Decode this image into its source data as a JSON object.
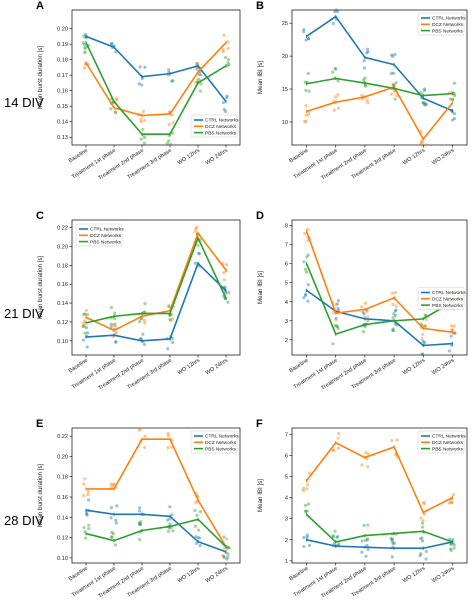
{
  "colors": {
    "CTRL": "#1f77b4",
    "DCZ": "#ff7f0e",
    "PBS": "#2ca02c"
  },
  "row_labels": [
    "14 DIV",
    "21 DIV",
    "28 DIV"
  ],
  "categories": [
    "Baseline",
    "Treatment 1st phase",
    "Treatment 2nd phase",
    "Treatment 3rd phase",
    "WO 12hrs",
    "WO 24hrs"
  ],
  "chart_data": [
    {
      "panel": "A",
      "type": "line",
      "ylabel": "Mean burst duration [s]",
      "ylim": [
        0.125,
        0.212
      ],
      "yticks": [
        0.13,
        0.14,
        0.15,
        0.16,
        0.17,
        0.18,
        0.19,
        0.2
      ],
      "legend": "bottom-right",
      "series": [
        {
          "name": "CTRL Networks",
          "values": [
            0.195,
            0.188,
            0.169,
            0.171,
            0.176,
            0.153
          ]
        },
        {
          "name": "DCZ Networks",
          "values": [
            0.178,
            0.149,
            0.144,
            0.145,
            0.172,
            0.191
          ]
        },
        {
          "name": "PBS Networks",
          "values": [
            0.191,
            0.153,
            0.132,
            0.132,
            0.165,
            0.176
          ]
        }
      ]
    },
    {
      "panel": "B",
      "type": "line",
      "ylabel": "Mean IBI [s]",
      "ylim": [
        6.5,
        27
      ],
      "yticks": [
        10,
        15,
        20,
        25
      ],
      "legend": "top-right",
      "series": [
        {
          "name": "CTRL Networks",
          "values": [
            23.0,
            26.0,
            19.8,
            18.7,
            13.6,
            11.7
          ]
        },
        {
          "name": "DCZ Networks",
          "values": [
            11.6,
            13.0,
            13.8,
            15.3,
            7.4,
            12.9
          ]
        },
        {
          "name": "PBS Networks",
          "values": [
            15.8,
            16.6,
            15.9,
            15.1,
            14.0,
            14.3
          ]
        }
      ]
    },
    {
      "panel": "C",
      "type": "line",
      "ylabel": "Mean burst duration [s]",
      "ylim": [
        0.085,
        0.228
      ],
      "yticks": [
        0.1,
        0.12,
        0.14,
        0.16,
        0.18,
        0.2,
        0.22
      ],
      "legend": "top-left",
      "series": [
        {
          "name": "CTRL Networks",
          "values": [
            0.104,
            0.106,
            0.1,
            0.102,
            0.182,
            0.153
          ]
        },
        {
          "name": "DCZ Networks",
          "values": [
            0.125,
            0.111,
            0.126,
            0.132,
            0.214,
            0.175
          ]
        },
        {
          "name": "PBS Networks",
          "values": [
            0.119,
            0.126,
            0.129,
            0.129,
            0.209,
            0.145
          ]
        }
      ]
    },
    {
      "panel": "D",
      "type": "line",
      "ylabel": "Mean IBI [s]",
      "ylim": [
        1.2,
        8.3
      ],
      "yticks": [
        2,
        3,
        4,
        5,
        6,
        7,
        8
      ],
      "legend": "center-right",
      "series": [
        {
          "name": "CTRL Networks",
          "values": [
            4.6,
            3.5,
            3.1,
            3.0,
            1.7,
            1.8
          ]
        },
        {
          "name": "DCZ Networks",
          "values": [
            7.7,
            3.4,
            3.6,
            4.2,
            2.6,
            2.4
          ]
        },
        {
          "name": "PBS Networks",
          "values": [
            6.0,
            2.3,
            2.8,
            3.0,
            3.1,
            4.0
          ]
        }
      ]
    },
    {
      "panel": "E",
      "type": "line",
      "ylabel": "Mean burst duration [s]",
      "ylim": [
        0.095,
        0.228
      ],
      "yticks": [
        0.1,
        0.12,
        0.14,
        0.16,
        0.18,
        0.2,
        0.22
      ],
      "legend": "top-right",
      "series": [
        {
          "name": "CTRL Networks",
          "values": [
            0.147,
            0.143,
            0.143,
            0.141,
            0.116,
            0.106
          ]
        },
        {
          "name": "DCZ Networks",
          "values": [
            0.168,
            0.168,
            0.217,
            0.217,
            0.157,
            0.111
          ]
        },
        {
          "name": "PBS Networks",
          "values": [
            0.124,
            0.117,
            0.127,
            0.131,
            0.138,
            0.111
          ]
        }
      ]
    },
    {
      "panel": "F",
      "type": "line",
      "ylabel": "Mean IBI [s]",
      "ylim": [
        0.9,
        7.3
      ],
      "yticks": [
        1,
        2,
        3,
        4,
        5,
        6,
        7
      ],
      "legend": "top-right",
      "series": [
        {
          "name": "CTRL Networks",
          "values": [
            2.0,
            1.7,
            1.65,
            1.6,
            1.6,
            1.9
          ]
        },
        {
          "name": "DCZ Networks",
          "values": [
            4.8,
            6.6,
            5.9,
            6.4,
            3.3,
            4.0
          ]
        },
        {
          "name": "PBS Networks",
          "values": [
            3.2,
            1.9,
            2.2,
            2.3,
            2.4,
            1.9
          ]
        }
      ]
    }
  ]
}
